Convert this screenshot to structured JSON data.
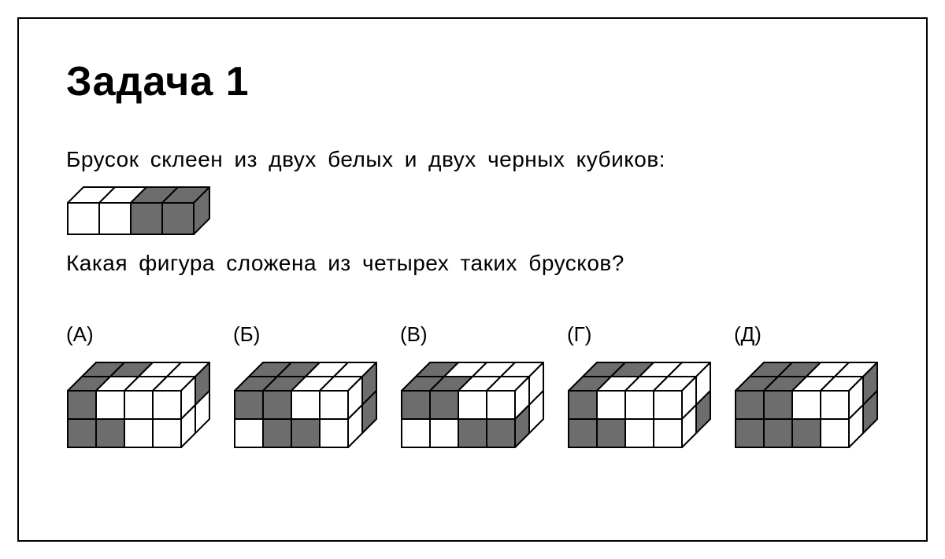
{
  "colors": {
    "white": "#ffffff",
    "black": "#6d6d6d",
    "edge": "#000000"
  },
  "cube": {
    "u": 36,
    "depth": 18,
    "ref_u": 40,
    "ref_depth": 20
  },
  "title": "Задача 1",
  "prompt": "Брусок склеен из двух белых и двух черных кубиков:",
  "question": "Какая фигура сложена из четырех таких брусков?",
  "reference": {
    "cols": 4,
    "rows": 1,
    "depth": 1,
    "front": [
      [
        "W",
        "W",
        "B",
        "B"
      ]
    ],
    "top": [
      [
        "W",
        "W",
        "B",
        "B"
      ]
    ],
    "side": [
      [
        "B"
      ]
    ]
  },
  "options": [
    {
      "label": "(А)",
      "cols": 4,
      "rows": 2,
      "depth": 2,
      "front": [
        [
          "B",
          "W",
          "W",
          "W"
        ],
        [
          "B",
          "B",
          "W",
          "W"
        ]
      ],
      "top": [
        [
          "B",
          "B",
          "W",
          "W"
        ],
        [
          "B",
          "W",
          "W",
          "W"
        ]
      ],
      "side": [
        [
          "W",
          "B"
        ],
        [
          "W",
          "W"
        ]
      ]
    },
    {
      "label": "(Б)",
      "cols": 4,
      "rows": 2,
      "depth": 2,
      "front": [
        [
          "B",
          "B",
          "W",
          "W"
        ],
        [
          "W",
          "B",
          "B",
          "W"
        ]
      ],
      "top": [
        [
          "B",
          "B",
          "W",
          "W"
        ],
        [
          "B",
          "B",
          "W",
          "W"
        ]
      ],
      "side": [
        [
          "W",
          "B"
        ],
        [
          "W",
          "B"
        ]
      ]
    },
    {
      "label": "(В)",
      "cols": 4,
      "rows": 2,
      "depth": 2,
      "front": [
        [
          "B",
          "B",
          "W",
          "W"
        ],
        [
          "W",
          "W",
          "B",
          "B"
        ]
      ],
      "top": [
        [
          "B",
          "W",
          "W",
          "W"
        ],
        [
          "B",
          "B",
          "W",
          "W"
        ]
      ],
      "side": [
        [
          "W",
          "W"
        ],
        [
          "B",
          "W"
        ]
      ]
    },
    {
      "label": "(Г)",
      "cols": 4,
      "rows": 2,
      "depth": 2,
      "front": [
        [
          "B",
          "W",
          "W",
          "W"
        ],
        [
          "B",
          "B",
          "W",
          "W"
        ]
      ],
      "top": [
        [
          "B",
          "B",
          "W",
          "W"
        ],
        [
          "B",
          "W",
          "W",
          "W"
        ]
      ],
      "side": [
        [
          "W",
          "W"
        ],
        [
          "W",
          "B"
        ]
      ]
    },
    {
      "label": "(Д)",
      "cols": 4,
      "rows": 2,
      "depth": 2,
      "front": [
        [
          "B",
          "B",
          "W",
          "W"
        ],
        [
          "B",
          "B",
          "B",
          "W"
        ]
      ],
      "top": [
        [
          "B",
          "B",
          "W",
          "W"
        ],
        [
          "B",
          "B",
          "W",
          "W"
        ]
      ],
      "side": [
        [
          "W",
          "B"
        ],
        [
          "W",
          "B"
        ]
      ]
    }
  ]
}
